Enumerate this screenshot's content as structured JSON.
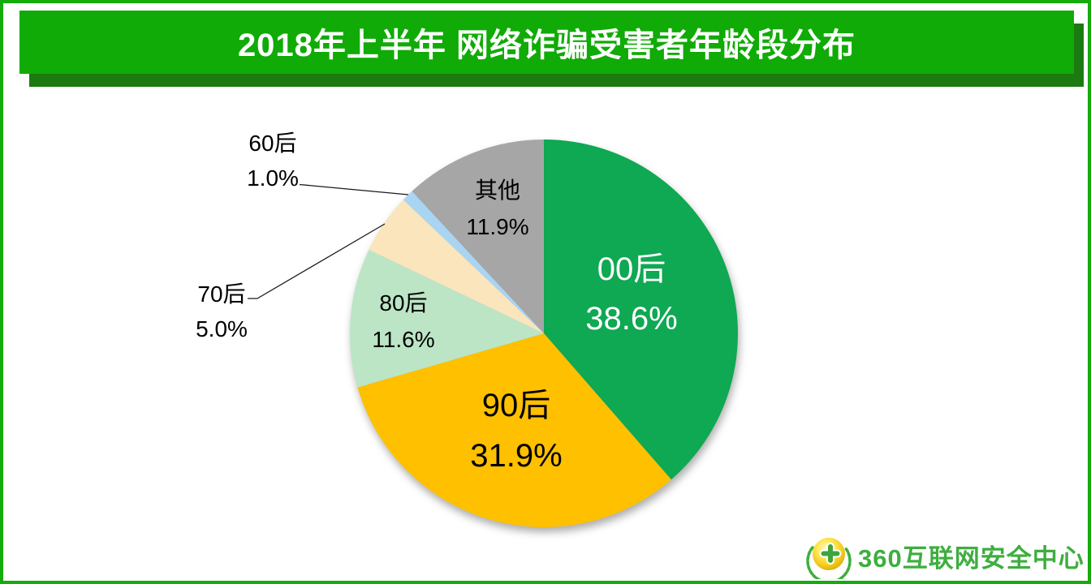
{
  "colors": {
    "frame": "#15AC0B",
    "banner_bg": "#10AB06",
    "banner_shadow": "#1B7A10",
    "banner_text": "#FFFFFF",
    "leader_line": "#1A1A1A",
    "label_dark": "#000000",
    "label_light": "#FFFFFF",
    "logo_green": "#3EAE3E"
  },
  "banner": {
    "title": "2018年上半年 网络诈骗受害者年龄段分布"
  },
  "chart_data": {
    "type": "pie",
    "title": "2018年上半年 网络诈骗受害者年龄段分布",
    "unit": "percent",
    "start_angle_deg": 0,
    "direction": "clockwise",
    "slices": [
      {
        "label": "00后",
        "value": 38.6,
        "display": "38.6%",
        "color": "#0FA853",
        "label_placement": "inside"
      },
      {
        "label": "90后",
        "value": 31.9,
        "display": "31.9%",
        "color": "#FFC000",
        "label_placement": "inside"
      },
      {
        "label": "80后",
        "value": 11.6,
        "display": "11.6%",
        "color": "#BCE5C6",
        "label_placement": "inside"
      },
      {
        "label": "70后",
        "value": 5.0,
        "display": "5.0%",
        "color": "#FAE5BD",
        "label_placement": "outside"
      },
      {
        "label": "60后",
        "value": 1.0,
        "display": "1.0%",
        "color": "#A9D5F3",
        "label_placement": "outside"
      },
      {
        "label": "其他",
        "value": 11.9,
        "display": "11.9%",
        "color": "#A6A6A6",
        "label_placement": "inside"
      }
    ]
  },
  "logo": {
    "text": "360互联网安全中心"
  }
}
